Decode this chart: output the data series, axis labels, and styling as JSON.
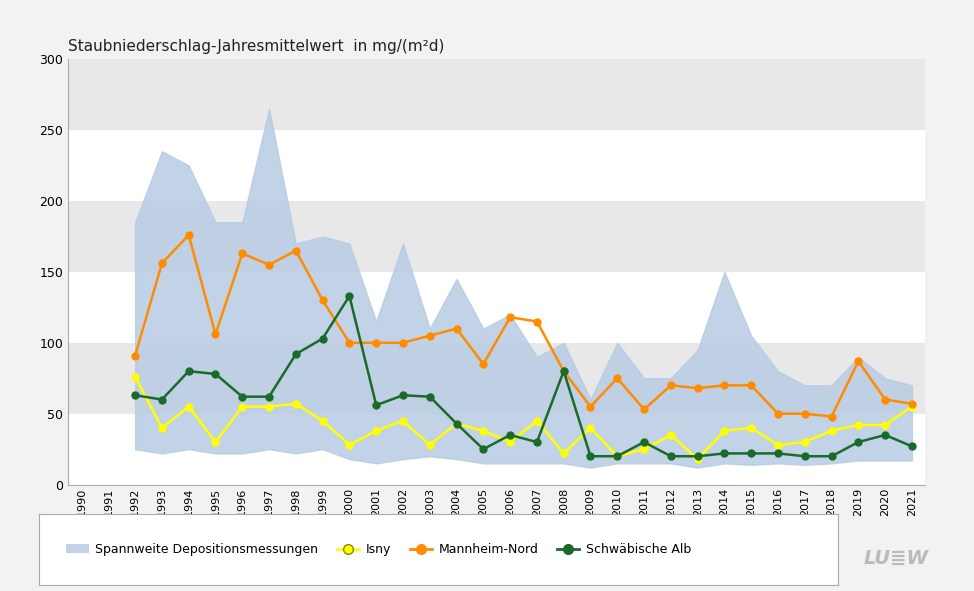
{
  "years": [
    1990,
    1991,
    1992,
    1993,
    1994,
    1995,
    1996,
    1997,
    1998,
    1999,
    2000,
    2001,
    2002,
    2003,
    2004,
    2005,
    2006,
    2007,
    2008,
    2009,
    2010,
    2011,
    2012,
    2013,
    2014,
    2015,
    2016,
    2017,
    2018,
    2019,
    2020,
    2021
  ],
  "span_upper": [
    null,
    null,
    185,
    235,
    225,
    185,
    185,
    265,
    170,
    175,
    170,
    115,
    170,
    110,
    145,
    110,
    120,
    90,
    100,
    60,
    100,
    75,
    75,
    95,
    150,
    105,
    80,
    70,
    70,
    90,
    75,
    70
  ],
  "span_lower": [
    null,
    null,
    25,
    22,
    25,
    22,
    22,
    25,
    22,
    25,
    18,
    15,
    18,
    20,
    18,
    15,
    15,
    15,
    15,
    12,
    15,
    15,
    15,
    12,
    15,
    14,
    15,
    14,
    15,
    17,
    17,
    17
  ],
  "isny": [
    null,
    null,
    76,
    40,
    55,
    30,
    55,
    55,
    57,
    45,
    28,
    38,
    45,
    28,
    43,
    38,
    30,
    45,
    22,
    40,
    20,
    25,
    35,
    18,
    38,
    40,
    28,
    30,
    38,
    42,
    42,
    55
  ],
  "mannheim": [
    null,
    null,
    91,
    156,
    176,
    106,
    163,
    155,
    165,
    130,
    100,
    100,
    100,
    105,
    110,
    85,
    118,
    115,
    80,
    55,
    75,
    53,
    70,
    68,
    70,
    70,
    50,
    50,
    48,
    87,
    60,
    57
  ],
  "schwaebische_alb": [
    null,
    null,
    63,
    60,
    80,
    78,
    62,
    62,
    92,
    103,
    133,
    56,
    63,
    62,
    43,
    25,
    35,
    30,
    80,
    20,
    20,
    30,
    20,
    20,
    22,
    22,
    22,
    20,
    20,
    30,
    35,
    27
  ],
  "title": "Staubniederschlag-Jahresmittelwert  in mg/(m²d)",
  "ylim": [
    0,
    300
  ],
  "yticks": [
    0,
    50,
    100,
    150,
    200,
    250,
    300
  ],
  "span_color": "#b8cce4",
  "span_alpha": 0.85,
  "isny_color": "#ffff00",
  "mannheim_color": "#ff8c00",
  "schwaebische_color": "#1a6b2a",
  "bg_color": "#f2f2f2",
  "band_white": "#ffffff",
  "band_gray": "#e8e8e8",
  "legend_span_label": "Spannweite Depositionsmessungen",
  "legend_isny_label": "Isny",
  "legend_mannheim_label": "Mannheim-Nord",
  "legend_schwaebische_label": "Schwäbische Alb",
  "lubw_text": "LU≣W"
}
